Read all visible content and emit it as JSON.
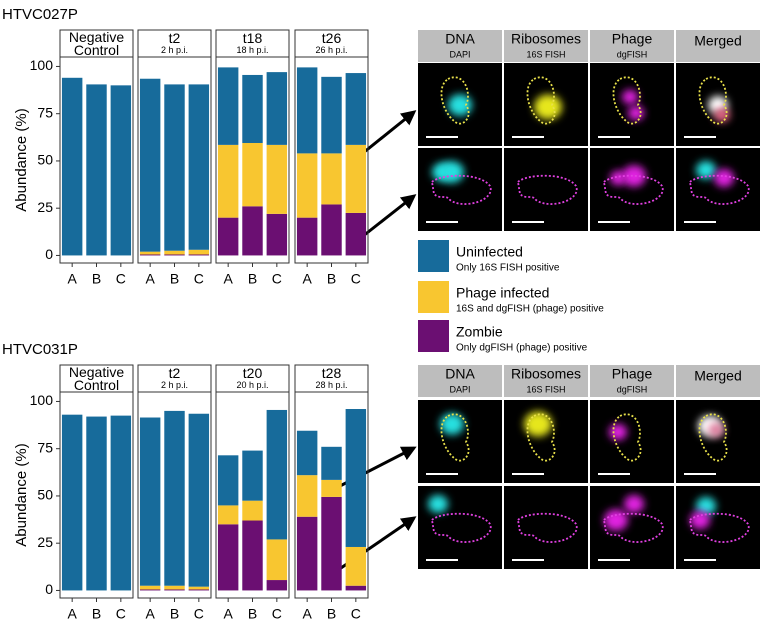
{
  "panel_labels": [
    "HTVC027P",
    "HTVC031P"
  ],
  "legend_notes": [
    "Only 16S FISH positive",
    "16S and dgFISH (phage) positive",
    "Only dgFISH (phage) positive"
  ],
  "image_panels": [
    {
      "columns": [
        {
          "title": "DNA",
          "subtitle": "DAPI"
        },
        {
          "title": "Ribosomes",
          "subtitle": "16S FISH"
        },
        {
          "title": "Phage",
          "subtitle": "dgFISH"
        },
        {
          "title": "Merged"
        }
      ]
    },
    {
      "columns": [
        {
          "title": "DNA",
          "subtitle": "DAPI"
        },
        {
          "title": "Ribosomes",
          "subtitle": "16S FISH"
        },
        {
          "title": "Phage",
          "subtitle": "dgFISH"
        },
        {
          "title": "Merged"
        }
      ]
    }
  ],
  "chart_data": [
    {
      "type": "bar",
      "stacked": true,
      "title": "Negative Control",
      "ylabel": "Abundance (%)",
      "categories": [
        "A",
        "B",
        "C"
      ],
      "ylim": [
        -4,
        105
      ],
      "yticks": [
        0,
        25,
        50,
        75,
        100
      ],
      "series": [
        {
          "name": "Zombie",
          "color": "#6b0f72",
          "values": [
            0,
            0,
            0
          ]
        },
        {
          "name": "Phage infected",
          "color": "#f8c630",
          "values": [
            0,
            0,
            0
          ]
        },
        {
          "name": "Uninfected",
          "color": "#176b9b",
          "values": [
            94,
            90.5,
            90
          ]
        }
      ]
    },
    {
      "type": "bar",
      "stacked": true,
      "title": "t2",
      "subtitle": "2 h p.i.",
      "categories": [
        "A",
        "B",
        "C"
      ],
      "ylim": [
        -4,
        105
      ],
      "series": [
        {
          "name": "Zombie",
          "color": "#6b0f72",
          "values": [
            0.5,
            0.5,
            0.5
          ]
        },
        {
          "name": "Phage infected",
          "color": "#f8c630",
          "values": [
            1.5,
            2,
            2.5
          ]
        },
        {
          "name": "Uninfected",
          "color": "#176b9b",
          "values": [
            91.5,
            88,
            87.5
          ]
        }
      ]
    },
    {
      "type": "bar",
      "stacked": true,
      "title": "t18",
      "subtitle": "18 h p.i.",
      "categories": [
        "A",
        "B",
        "C"
      ],
      "ylim": [
        -4,
        105
      ],
      "series": [
        {
          "name": "Zombie",
          "color": "#6b0f72",
          "values": [
            20,
            26,
            22
          ]
        },
        {
          "name": "Phage infected",
          "color": "#f8c630",
          "values": [
            38.5,
            33.5,
            36.5
          ]
        },
        {
          "name": "Uninfected",
          "color": "#176b9b",
          "values": [
            41,
            36,
            38.5
          ]
        }
      ]
    },
    {
      "type": "bar",
      "stacked": true,
      "title": "t26",
      "subtitle": "26 h p.i.",
      "categories": [
        "A",
        "B",
        "C"
      ],
      "ylim": [
        -4,
        105
      ],
      "series": [
        {
          "name": "Zombie",
          "color": "#6b0f72",
          "values": [
            20,
            27,
            22.5
          ]
        },
        {
          "name": "Phage infected",
          "color": "#f8c630",
          "values": [
            34,
            27,
            36
          ]
        },
        {
          "name": "Uninfected",
          "color": "#176b9b",
          "values": [
            45.5,
            40.5,
            38
          ]
        }
      ]
    },
    {
      "type": "bar",
      "stacked": true,
      "title": "Negative Control",
      "ylabel": "Abundance (%)",
      "categories": [
        "A",
        "B",
        "C"
      ],
      "ylim": [
        -4,
        105
      ],
      "yticks": [
        0,
        25,
        50,
        75,
        100
      ],
      "series": [
        {
          "name": "Zombie",
          "color": "#6b0f72",
          "values": [
            0,
            0,
            0
          ]
        },
        {
          "name": "Phage infected",
          "color": "#f8c630",
          "values": [
            0,
            0,
            0
          ]
        },
        {
          "name": "Uninfected",
          "color": "#176b9b",
          "values": [
            93,
            92,
            92.5
          ]
        }
      ]
    },
    {
      "type": "bar",
      "stacked": true,
      "title": "t2",
      "subtitle": "2 h p.i.",
      "categories": [
        "A",
        "B",
        "C"
      ],
      "ylim": [
        -4,
        105
      ],
      "series": [
        {
          "name": "Zombie",
          "color": "#6b0f72",
          "values": [
            0.5,
            0.5,
            0.5
          ]
        },
        {
          "name": "Phage infected",
          "color": "#f8c630",
          "values": [
            2,
            2,
            1.5
          ]
        },
        {
          "name": "Uninfected",
          "color": "#176b9b",
          "values": [
            89,
            92.5,
            91.5
          ]
        }
      ]
    },
    {
      "type": "bar",
      "stacked": true,
      "title": "t20",
      "subtitle": "20 h p.i.",
      "categories": [
        "A",
        "B",
        "C"
      ],
      "ylim": [
        -4,
        105
      ],
      "series": [
        {
          "name": "Zombie",
          "color": "#6b0f72",
          "values": [
            35,
            37,
            5.5
          ]
        },
        {
          "name": "Phage infected",
          "color": "#f8c630",
          "values": [
            10,
            10.5,
            21.5
          ]
        },
        {
          "name": "Uninfected",
          "color": "#176b9b",
          "values": [
            26.5,
            26.5,
            68.5
          ]
        }
      ]
    },
    {
      "type": "bar",
      "stacked": true,
      "title": "t28",
      "subtitle": "28 h p.i.",
      "categories": [
        "A",
        "B",
        "C"
      ],
      "ylim": [
        -4,
        105
      ],
      "series": [
        {
          "name": "Zombie",
          "color": "#6b0f72",
          "values": [
            39,
            49.5,
            2.5
          ]
        },
        {
          "name": "Phage infected",
          "color": "#f8c630",
          "values": [
            22,
            9,
            20.5
          ]
        },
        {
          "name": "Uninfected",
          "color": "#176b9b",
          "values": [
            23.5,
            17.5,
            73
          ]
        }
      ]
    }
  ]
}
